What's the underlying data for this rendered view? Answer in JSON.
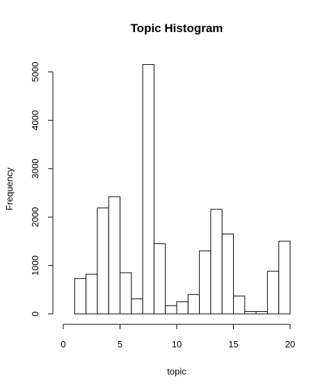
{
  "chart_data": {
    "type": "bar",
    "title": "Topic Histogram",
    "xlabel": "topic",
    "ylabel": "Frequency",
    "bin_width": 1,
    "bins": [
      {
        "start": 1,
        "end": 2,
        "value": 730
      },
      {
        "start": 2,
        "end": 3,
        "value": 820
      },
      {
        "start": 3,
        "end": 4,
        "value": 2190
      },
      {
        "start": 4,
        "end": 5,
        "value": 2420
      },
      {
        "start": 5,
        "end": 6,
        "value": 850
      },
      {
        "start": 6,
        "end": 7,
        "value": 310
      },
      {
        "start": 7,
        "end": 8,
        "value": 5150
      },
      {
        "start": 8,
        "end": 9,
        "value": 1450
      },
      {
        "start": 9,
        "end": 10,
        "value": 170
      },
      {
        "start": 10,
        "end": 11,
        "value": 250
      },
      {
        "start": 11,
        "end": 12,
        "value": 400
      },
      {
        "start": 12,
        "end": 13,
        "value": 1300
      },
      {
        "start": 13,
        "end": 14,
        "value": 2160
      },
      {
        "start": 14,
        "end": 15,
        "value": 1650
      },
      {
        "start": 15,
        "end": 16,
        "value": 370
      },
      {
        "start": 16,
        "end": 17,
        "value": 50
      },
      {
        "start": 17,
        "end": 18,
        "value": 50
      },
      {
        "start": 18,
        "end": 19,
        "value": 880
      },
      {
        "start": 19,
        "end": 20,
        "value": 1500
      }
    ],
    "x_ticks": [
      "0",
      "5",
      "10",
      "15",
      "20"
    ],
    "y_ticks": [
      "0",
      "1000",
      "2000",
      "3000",
      "4000",
      "5000"
    ],
    "xlim": [
      0,
      20
    ],
    "ylim": [
      0,
      5000
    ],
    "grid": false,
    "legend": "none"
  }
}
